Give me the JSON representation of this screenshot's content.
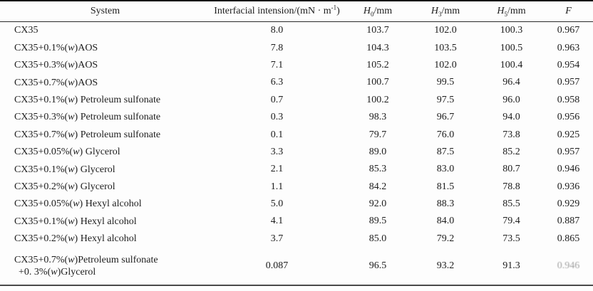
{
  "table": {
    "columns": [
      {
        "name": "system",
        "parts": [
          {
            "t": "n",
            "v": "System"
          }
        ]
      },
      {
        "name": "tension",
        "parts": [
          {
            "t": "n",
            "v": "Interfacial intension/(mN · m"
          },
          {
            "t": "sup",
            "v": "-1"
          },
          {
            "t": "n",
            "v": ")"
          }
        ]
      },
      {
        "name": "h0",
        "parts": [
          {
            "t": "i",
            "v": "H"
          },
          {
            "t": "sub",
            "v": "0"
          },
          {
            "t": "n",
            "v": "/mm"
          }
        ]
      },
      {
        "name": "h3",
        "parts": [
          {
            "t": "i",
            "v": "H"
          },
          {
            "t": "sub",
            "v": "3"
          },
          {
            "t": "n",
            "v": "/mm"
          }
        ]
      },
      {
        "name": "h5",
        "parts": [
          {
            "t": "i",
            "v": "H"
          },
          {
            "t": "sub",
            "v": "5"
          },
          {
            "t": "n",
            "v": "/mm"
          }
        ]
      },
      {
        "name": "f",
        "parts": [
          {
            "t": "i",
            "v": "F"
          }
        ]
      }
    ],
    "rows": [
      {
        "system": [
          "CX35"
        ],
        "tension": "8.0",
        "h0": "103.7",
        "h3": "102.0",
        "h5": "100.3",
        "f": "0.967",
        "f_faded": false
      },
      {
        "system": [
          "CX35+0.1%(w)AOS"
        ],
        "tension": "7.8",
        "h0": "104.3",
        "h3": "103.5",
        "h5": "100.5",
        "f": "0.963",
        "f_faded": false
      },
      {
        "system": [
          "CX35+0.3%(w)AOS"
        ],
        "tension": "7.1",
        "h0": "105.2",
        "h3": "102.0",
        "h5": "100.4",
        "f": "0.954",
        "f_faded": false
      },
      {
        "system": [
          "CX35+0.7%(w)AOS"
        ],
        "tension": "6.3",
        "h0": "100.7",
        "h3": "99.5",
        "h5": "96.4",
        "f": "0.957",
        "f_faded": false
      },
      {
        "system": [
          "CX35+0.1%(w) Petroleum sulfonate"
        ],
        "tension": "0.7",
        "h0": "100.2",
        "h3": "97.5",
        "h5": "96.0",
        "f": "0.958",
        "f_faded": false
      },
      {
        "system": [
          "CX35+0.3%(w) Petroleum sulfonate"
        ],
        "tension": "0.3",
        "h0": "98.3",
        "h3": "96.7",
        "h5": "94.0",
        "f": "0.956",
        "f_faded": false
      },
      {
        "system": [
          "CX35+0.7%(w) Petroleum sulfonate"
        ],
        "tension": "0.1",
        "h0": "79.7",
        "h3": "76.0",
        "h5": "73.8",
        "f": "0.925",
        "f_faded": false
      },
      {
        "system": [
          "CX35+0.05%(w) Glycerol"
        ],
        "tension": "3.3",
        "h0": "89.0",
        "h3": "87.5",
        "h5": "85.2",
        "f": "0.957",
        "f_faded": false
      },
      {
        "system": [
          "CX35+0.1%(w) Glycerol"
        ],
        "tension": "2.1",
        "h0": "85.3",
        "h3": "83.0",
        "h5": "80.7",
        "f": "0.946",
        "f_faded": false
      },
      {
        "system": [
          "CX35+0.2%(w) Glycerol"
        ],
        "tension": "1.1",
        "h0": "84.2",
        "h3": "81.5",
        "h5": "78.8",
        "f": "0.936",
        "f_faded": false
      },
      {
        "system": [
          "CX35+0.05%(w) Hexyl alcohol"
        ],
        "tension": "5.0",
        "h0": "92.0",
        "h3": "88.3",
        "h5": "85.5",
        "f": "0.929",
        "f_faded": false
      },
      {
        "system": [
          "CX35+0.1%(w) Hexyl alcohol"
        ],
        "tension": "4.1",
        "h0": "89.5",
        "h3": "84.0",
        "h5": "79.4",
        "f": "0.887",
        "f_faded": false
      },
      {
        "system": [
          "CX35+0.2%(w) Hexyl alcohol"
        ],
        "tension": "3.7",
        "h0": "85.0",
        "h3": "79.2",
        "h5": "73.5",
        "f": "0.865",
        "f_faded": false
      },
      {
        "system": [
          "CX35+0.7%(w)Petroleum sulfonate",
          "+0. 3%(w)Glycerol"
        ],
        "tension": "0.087",
        "h0": "96.5",
        "h3": "93.2",
        "h5": "91.3",
        "f": "0.946",
        "f_faded": true
      }
    ],
    "colors": {
      "text": "#1d1d1d",
      "rule_top": "#161616",
      "rule_header": "#2a2a2a",
      "rule_bottom": "#4a4a4a",
      "background": "#fdfdfd"
    }
  }
}
